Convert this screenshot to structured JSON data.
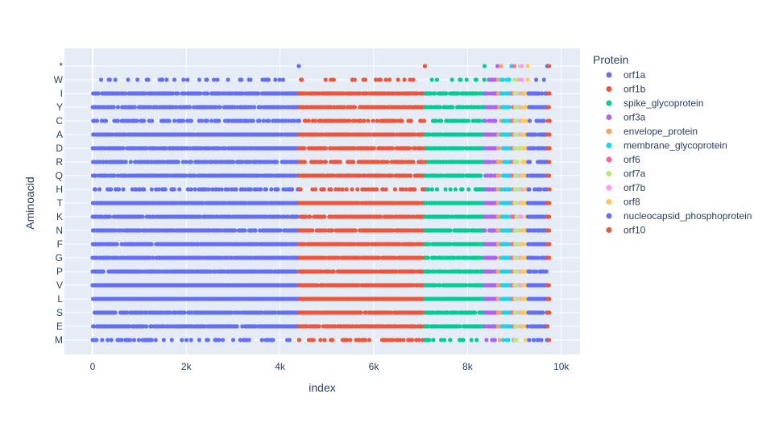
{
  "chart_data": {
    "type": "scatter",
    "xlabel": "index",
    "ylabel": "Aminoacid",
    "xlim": [
      -600,
      10400
    ],
    "xticks": [
      0,
      2000,
      4000,
      6000,
      8000,
      10000
    ],
    "xtick_labels": [
      "0",
      "2k",
      "4k",
      "6k",
      "8k",
      "10k"
    ],
    "categories": [
      "*",
      "W",
      "I",
      "Y",
      "C",
      "A",
      "D",
      "R",
      "Q",
      "H",
      "T",
      "K",
      "N",
      "F",
      "G",
      "P",
      "V",
      "L",
      "S",
      "E",
      "M"
    ],
    "category_density": [
      0.01,
      0.25,
      0.85,
      0.8,
      0.55,
      0.95,
      0.85,
      0.7,
      0.85,
      0.45,
      0.95,
      0.85,
      0.85,
      0.9,
      0.9,
      0.85,
      0.97,
      1.0,
      0.9,
      0.85,
      0.35
    ],
    "grid": true,
    "legend_title": "Protein",
    "legend_position": "right",
    "series": [
      {
        "name": "orf1a",
        "color": "#636efa",
        "x_range": [
          0,
          4405
        ]
      },
      {
        "name": "orf1b",
        "color": "#EF553B",
        "x_range": [
          4405,
          7096
        ]
      },
      {
        "name": "spike_glycoprotein",
        "color": "#00cc96",
        "x_range": [
          7096,
          8369
        ]
      },
      {
        "name": "orf3a",
        "color": "#ab63fa",
        "x_range": [
          8369,
          8644
        ]
      },
      {
        "name": "envelope_protein",
        "color": "#FFA15A",
        "x_range": [
          8644,
          8719
        ]
      },
      {
        "name": "membrane_glycoprotein",
        "color": "#19d3f3",
        "x_range": [
          8719,
          8941
        ]
      },
      {
        "name": "orf6",
        "color": "#FF6692",
        "x_range": [
          8941,
          9002
        ]
      },
      {
        "name": "orf7a",
        "color": "#B6E880",
        "x_range": [
          9002,
          9123
        ]
      },
      {
        "name": "orf7b",
        "color": "#FF97FF",
        "x_range": [
          9123,
          9166
        ]
      },
      {
        "name": "orf8",
        "color": "#FECB52",
        "x_range": [
          9166,
          9287
        ]
      },
      {
        "name": "nucleocapsid_phosphoprotein",
        "color": "#636efa",
        "x_range": [
          9287,
          9706
        ]
      },
      {
        "name": "orf10",
        "color": "#EF553B",
        "x_range": [
          9706,
          9744
        ]
      }
    ],
    "stop_codon_points": [
      {
        "x": 4400,
        "series": "orf1a"
      },
      {
        "x": 7090,
        "series": "orf1b"
      },
      {
        "x": 8365,
        "series": "spike_glycoprotein"
      },
      {
        "x": 8640,
        "series": "orf3a"
      },
      {
        "x": 8715,
        "series": "envelope_protein"
      },
      {
        "x": 8937,
        "series": "membrane_glycoprotein"
      },
      {
        "x": 8998,
        "series": "orf6"
      },
      {
        "x": 9119,
        "series": "orf7a"
      },
      {
        "x": 9162,
        "series": "orf7b"
      },
      {
        "x": 9283,
        "series": "orf8"
      },
      {
        "x": 9702,
        "series": "nucleocapsid_phosphoprotein"
      },
      {
        "x": 9740,
        "series": "orf10"
      }
    ]
  }
}
